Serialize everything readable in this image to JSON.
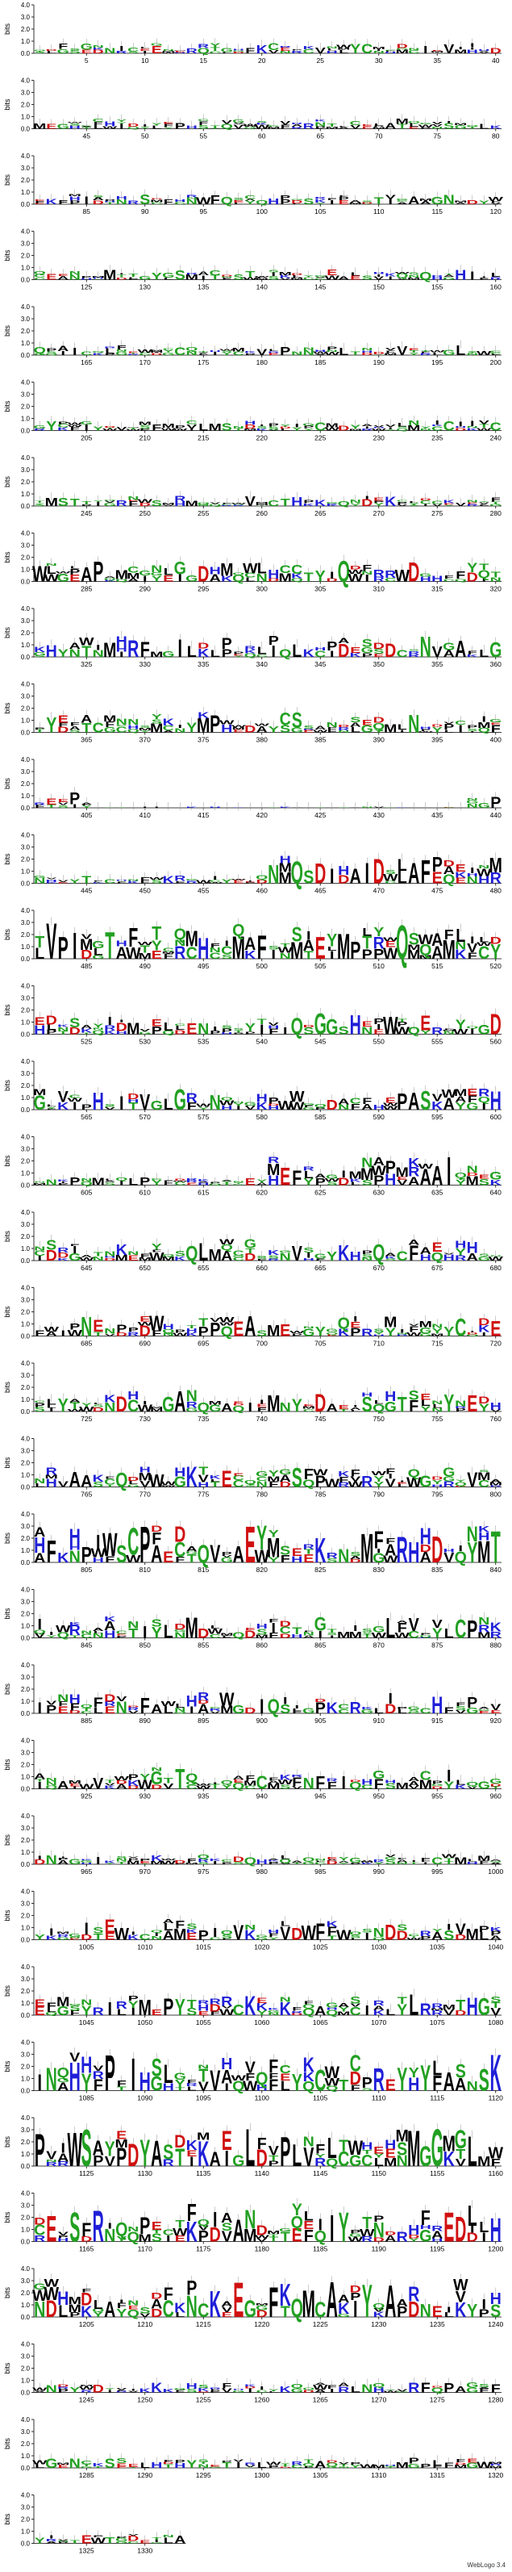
{
  "chart_data": {
    "type": "sequence-logo",
    "ylabel": "bits",
    "ylim": [
      0,
      4.0
    ],
    "yticks": [
      0,
      1.0,
      2.0,
      3.0,
      4.0
    ],
    "positions_per_row": 40,
    "total_positions": 1333,
    "alphabet_colors": {
      "polar": "#22a022",
      "basic": "#1f1fd8",
      "acidic": "#d01010",
      "hydrophobic": "#000000",
      "neutral": "#8b008b"
    },
    "rows": [
      {
        "start": 1,
        "end": 40,
        "ticks": [
          5,
          10,
          15,
          20,
          25,
          30,
          35,
          40
        ],
        "profile": "low"
      },
      {
        "start": 41,
        "end": 80,
        "ticks": [
          45,
          50,
          55,
          60,
          65,
          70,
          75,
          80
        ],
        "profile": "low"
      },
      {
        "start": 81,
        "end": 120,
        "ticks": [
          85,
          90,
          95,
          100,
          105,
          110,
          115,
          120
        ],
        "profile": "low"
      },
      {
        "start": 121,
        "end": 160,
        "ticks": [
          125,
          130,
          135,
          140,
          145,
          150,
          155,
          160
        ],
        "profile": "low"
      },
      {
        "start": 161,
        "end": 200,
        "ticks": [
          165,
          170,
          175,
          180,
          185,
          190,
          195,
          200
        ],
        "profile": "low"
      },
      {
        "start": 201,
        "end": 240,
        "ticks": [
          205,
          210,
          215,
          220,
          225,
          230,
          235,
          240
        ],
        "profile": "low"
      },
      {
        "start": 241,
        "end": 280,
        "ticks": [
          245,
          250,
          255,
          260,
          265,
          270,
          275,
          280
        ],
        "profile": "low"
      },
      {
        "start": 281,
        "end": 320,
        "ticks": [
          285,
          290,
          295,
          300,
          305,
          310,
          315,
          320
        ],
        "profile": "mid"
      },
      {
        "start": 321,
        "end": 360,
        "ticks": [
          325,
          330,
          335,
          340,
          345,
          350,
          355,
          360
        ],
        "profile": "mid"
      },
      {
        "start": 361,
        "end": 400,
        "ticks": [
          365,
          370,
          375,
          380,
          385,
          390,
          395,
          400
        ],
        "profile": "mid"
      },
      {
        "start": 401,
        "end": 440,
        "ticks": [
          405,
          410,
          415,
          420,
          425,
          430,
          435,
          440
        ],
        "profile": "gap"
      },
      {
        "start": 441,
        "end": 480,
        "ticks": [
          445,
          450,
          455,
          460,
          465,
          470,
          475,
          480
        ],
        "profile": "rise"
      },
      {
        "start": 481,
        "end": 520,
        "ticks": [
          485,
          490,
          495,
          500,
          505,
          510,
          515,
          520
        ],
        "profile": "high"
      },
      {
        "start": 521,
        "end": 560,
        "ticks": [
          525,
          530,
          535,
          540,
          545,
          550,
          555,
          560
        ],
        "profile": "mid"
      },
      {
        "start": 561,
        "end": 600,
        "ticks": [
          565,
          570,
          575,
          580,
          585,
          590,
          595,
          600
        ],
        "profile": "mid"
      },
      {
        "start": 601,
        "end": 640,
        "ticks": [
          605,
          610,
          615,
          620,
          625,
          630,
          635,
          640
        ],
        "profile": "rise"
      },
      {
        "start": 641,
        "end": 680,
        "ticks": [
          645,
          650,
          655,
          660,
          665,
          670,
          675,
          680
        ],
        "profile": "mid"
      },
      {
        "start": 681,
        "end": 720,
        "ticks": [
          685,
          690,
          695,
          700,
          705,
          710,
          715,
          720
        ],
        "profile": "mid"
      },
      {
        "start": 721,
        "end": 760,
        "ticks": [
          725,
          730,
          735,
          740,
          745,
          750,
          755,
          760
        ],
        "profile": "mid"
      },
      {
        "start": 761,
        "end": 800,
        "ticks": [
          765,
          770,
          775,
          780,
          785,
          790,
          795,
          800
        ],
        "profile": "mid"
      },
      {
        "start": 801,
        "end": 840,
        "ticks": [
          805,
          810,
          815,
          820,
          825,
          830,
          835,
          840
        ],
        "profile": "high"
      },
      {
        "start": 841,
        "end": 880,
        "ticks": [
          845,
          850,
          855,
          860,
          865,
          870,
          875,
          880
        ],
        "profile": "mid"
      },
      {
        "start": 881,
        "end": 920,
        "ticks": [
          885,
          890,
          895,
          900,
          905,
          910,
          915,
          920
        ],
        "profile": "mid"
      },
      {
        "start": 921,
        "end": 960,
        "ticks": [
          925,
          930,
          935,
          940,
          945,
          950,
          955,
          960
        ],
        "profile": "mid"
      },
      {
        "start": 961,
        "end": 1000,
        "ticks": [
          965,
          970,
          975,
          980,
          985,
          990,
          995,
          1000
        ],
        "profile": "low"
      },
      {
        "start": 1001,
        "end": 1040,
        "ticks": [
          1005,
          1010,
          1015,
          1020,
          1025,
          1030,
          1035,
          1040
        ],
        "profile": "mid"
      },
      {
        "start": 1041,
        "end": 1080,
        "ticks": [
          1045,
          1050,
          1055,
          1060,
          1065,
          1070,
          1075,
          1080
        ],
        "profile": "mid"
      },
      {
        "start": 1081,
        "end": 1120,
        "ticks": [
          1085,
          1090,
          1095,
          1100,
          1105,
          1110,
          1115,
          1120
        ],
        "profile": "high"
      },
      {
        "start": 1121,
        "end": 1160,
        "ticks": [
          1125,
          1130,
          1135,
          1140,
          1145,
          1150,
          1155,
          1160
        ],
        "profile": "high"
      },
      {
        "start": 1161,
        "end": 1200,
        "ticks": [
          1165,
          1170,
          1175,
          1180,
          1185,
          1190,
          1195,
          1200
        ],
        "profile": "high"
      },
      {
        "start": 1201,
        "end": 1240,
        "ticks": [
          1205,
          1210,
          1215,
          1220,
          1225,
          1230,
          1235,
          1240
        ],
        "profile": "high"
      },
      {
        "start": 1241,
        "end": 1280,
        "ticks": [
          1245,
          1250,
          1255,
          1260,
          1265,
          1270,
          1275,
          1280
        ],
        "profile": "low"
      },
      {
        "start": 1281,
        "end": 1320,
        "ticks": [
          1285,
          1290,
          1295,
          1300,
          1305,
          1310,
          1315,
          1320
        ],
        "profile": "low"
      },
      {
        "start": 1321,
        "end": 1333,
        "ticks": [
          1325,
          1330
        ],
        "profile": "low"
      }
    ],
    "footer": "WebLogo 3.4"
  }
}
